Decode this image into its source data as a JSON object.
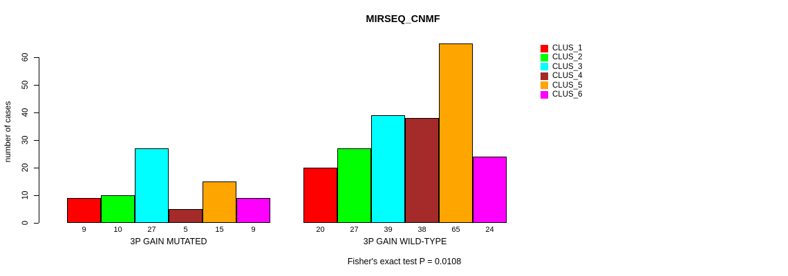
{
  "title": "MIRSEQ_CNMF",
  "caption": "Fisher's exact test P = 0.0108",
  "y_axis": {
    "label": "number of cases",
    "ticks": [
      0,
      10,
      20,
      30,
      40,
      50,
      60
    ]
  },
  "legend": {
    "items": [
      {
        "label": "CLUS_1",
        "color": "#FF0000"
      },
      {
        "label": "CLUS_2",
        "color": "#00FF00"
      },
      {
        "label": "CLUS_3",
        "color": "#00FFFF"
      },
      {
        "label": "CLUS_4",
        "color": "#A52A2A"
      },
      {
        "label": "CLUS_5",
        "color": "#FFA500"
      },
      {
        "label": "CLUS_6",
        "color": "#FF00FF"
      }
    ]
  },
  "chart_data": {
    "type": "bar",
    "title": "MIRSEQ_CNMF",
    "xlabel": "",
    "ylabel": "number of cases",
    "ylim": [
      0,
      65
    ],
    "grid": false,
    "legend_position": "right",
    "series_names": [
      "CLUS_1",
      "CLUS_2",
      "CLUS_3",
      "CLUS_4",
      "CLUS_5",
      "CLUS_6"
    ],
    "series_colors": [
      "#FF0000",
      "#00FF00",
      "#00FFFF",
      "#A52A2A",
      "#FFA500",
      "#FF00FF"
    ],
    "groups": [
      {
        "label": "3P GAIN MUTATED",
        "values": [
          9,
          10,
          27,
          5,
          15,
          9
        ]
      },
      {
        "label": "3P GAIN WILD-TYPE",
        "values": [
          20,
          27,
          39,
          38,
          65,
          24
        ]
      }
    ],
    "annotation": "Fisher's exact test P = 0.0108"
  }
}
